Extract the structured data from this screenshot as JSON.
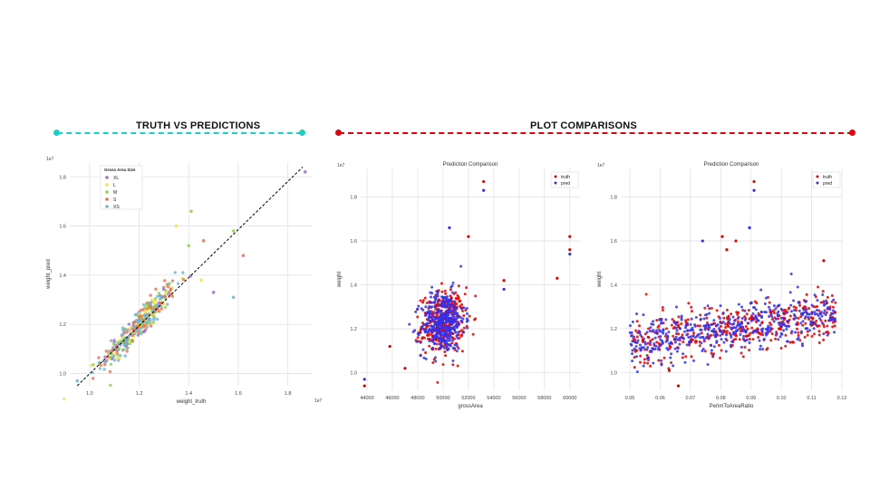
{
  "colors": {
    "left_accent": "#18d2c4",
    "right_accent": "#e00010",
    "truth": "#e00000",
    "pred": "#3030f0",
    "grid": "#e2e2e2",
    "diagonal": "#000000"
  },
  "sections": {
    "left_title": "TRUTH VS PREDICTIONS",
    "right_title": "PLOT COMPARISONS"
  },
  "chart_data": [
    {
      "type": "scatter",
      "title": "",
      "xlabel": "weight_truth",
      "ylabel": "weight_pred",
      "x_exponent": "1e7",
      "y_exponent": "1e7",
      "xlim": [
        0.92,
        1.9
      ],
      "ylim": [
        0.95,
        1.86
      ],
      "x_ticks": [
        "1.0",
        "1.2",
        "1.4",
        "1.6",
        "1.8"
      ],
      "y_ticks": [
        "1.0",
        "1.2",
        "1.4",
        "1.6",
        "1.8"
      ],
      "grid": true,
      "legend": {
        "title": "Gross Area Size",
        "placement": "top-left",
        "entries": [
          {
            "label": "XL",
            "color": "#9b6fc8"
          },
          {
            "label": "L",
            "color": "#f5e14a"
          },
          {
            "label": "M",
            "color": "#8ed04a"
          },
          {
            "label": "S",
            "color": "#f26b4a"
          },
          {
            "label": "XS",
            "color": "#6fb4d8"
          }
        ]
      },
      "reference_line": {
        "from": [
          0.95,
          0.95
        ],
        "to": [
          1.86,
          1.84
        ],
        "style": "dashed"
      },
      "points_per_series": 70,
      "cluster_center": [
        1.2,
        1.2
      ],
      "outliers": [
        {
          "x": 1.87,
          "y": 1.82,
          "series": "XL"
        },
        {
          "x": 1.62,
          "y": 1.48,
          "series": "S"
        },
        {
          "x": 1.58,
          "y": 1.31,
          "series": "XS"
        },
        {
          "x": 1.58,
          "y": 1.58,
          "series": "M"
        },
        {
          "x": 1.41,
          "y": 1.66,
          "series": "M"
        },
        {
          "x": 1.35,
          "y": 1.6,
          "series": "L"
        },
        {
          "x": 1.4,
          "y": 1.52,
          "series": "M"
        },
        {
          "x": 1.45,
          "y": 1.38,
          "series": "L"
        },
        {
          "x": 1.5,
          "y": 1.33,
          "series": "XL"
        },
        {
          "x": 1.46,
          "y": 1.54,
          "series": "S"
        },
        {
          "x": 0.95,
          "y": 0.97,
          "series": "XS"
        }
      ]
    },
    {
      "type": "scatter",
      "title": "Prediction Comparison",
      "xlabel": "grossArea",
      "ylabel": "weight",
      "y_exponent": "1e7",
      "xlim": [
        43500,
        60800
      ],
      "ylim": [
        0.92,
        1.93
      ],
      "x_ticks": [
        "44000",
        "46000",
        "48000",
        "50000",
        "52000",
        "54000",
        "56000",
        "58000",
        "60000"
      ],
      "y_ticks": [
        "1.0",
        "1.2",
        "1.4",
        "1.6",
        "1.8"
      ],
      "grid": true,
      "legend": {
        "placement": "top-right",
        "entries": [
          "truth",
          "pred"
        ]
      },
      "points_per_series": 360,
      "cluster_center": [
        50000,
        1.23
      ],
      "outliers": [
        {
          "x": 53200,
          "y": 1.87,
          "series": "truth"
        },
        {
          "x": 53200,
          "y": 1.83,
          "series": "pred"
        },
        {
          "x": 60000,
          "y": 1.62,
          "series": "truth"
        },
        {
          "x": 60000,
          "y": 1.56,
          "series": "truth"
        },
        {
          "x": 60000,
          "y": 1.54,
          "series": "pred"
        },
        {
          "x": 59000,
          "y": 1.43,
          "series": "truth"
        },
        {
          "x": 54800,
          "y": 1.42,
          "series": "truth"
        },
        {
          "x": 54800,
          "y": 1.38,
          "series": "pred"
        },
        {
          "x": 52000,
          "y": 1.62,
          "series": "truth"
        },
        {
          "x": 50500,
          "y": 1.66,
          "series": "pred"
        },
        {
          "x": 43800,
          "y": 0.94,
          "series": "truth"
        },
        {
          "x": 43800,
          "y": 0.97,
          "series": "pred"
        },
        {
          "x": 45800,
          "y": 1.12,
          "series": "truth"
        },
        {
          "x": 47000,
          "y": 1.02,
          "series": "truth"
        }
      ]
    },
    {
      "type": "scatter",
      "title": "Prediction Comparison",
      "xlabel": "PerimToAreaRatio",
      "ylabel": "weight",
      "y_exponent": "1e7",
      "xlim": [
        0.047,
        0.12
      ],
      "ylim": [
        0.92,
        1.93
      ],
      "x_ticks": [
        "0.05",
        "0.06",
        "0.07",
        "0.08",
        "0.09",
        "0.10",
        "0.11",
        "0.12"
      ],
      "y_ticks": [
        "1.0",
        "1.2",
        "1.4",
        "1.6",
        "1.8"
      ],
      "grid": true,
      "legend": {
        "placement": "top-right",
        "entries": [
          "truth",
          "pred"
        ]
      },
      "points_per_series": 420,
      "trend": {
        "x_start": 0.05,
        "y_start": 1.13,
        "x_end": 0.118,
        "y_end": 1.27
      },
      "outliers": [
        {
          "x": 0.091,
          "y": 1.87,
          "series": "truth"
        },
        {
          "x": 0.091,
          "y": 1.83,
          "series": "pred"
        },
        {
          "x": 0.0805,
          "y": 1.62,
          "series": "truth"
        },
        {
          "x": 0.085,
          "y": 1.6,
          "series": "truth"
        },
        {
          "x": 0.0895,
          "y": 1.66,
          "series": "pred"
        },
        {
          "x": 0.074,
          "y": 1.6,
          "series": "pred"
        },
        {
          "x": 0.114,
          "y": 1.51,
          "series": "truth"
        },
        {
          "x": 0.082,
          "y": 1.56,
          "series": "truth"
        },
        {
          "x": 0.066,
          "y": 0.94,
          "series": "truth"
        },
        {
          "x": 0.063,
          "y": 1.01,
          "series": "truth"
        }
      ]
    }
  ]
}
